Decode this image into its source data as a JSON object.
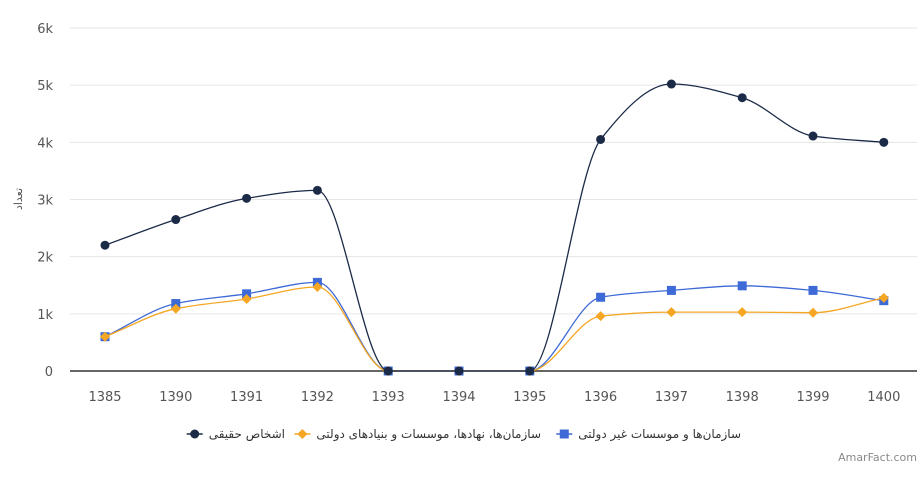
{
  "chart_data": {
    "type": "line",
    "title": "",
    "xlabel": "",
    "ylabel": "تعداد",
    "categories": [
      "1385",
      "1390",
      "1391",
      "1392",
      "1393",
      "1394",
      "1395",
      "1396",
      "1397",
      "1398",
      "1399",
      "1400"
    ],
    "ylim": [
      0,
      6000
    ],
    "yticks": [
      0,
      1000,
      2000,
      3000,
      4000,
      5000,
      6000
    ],
    "ytick_labels": [
      "0",
      "1k",
      "2k",
      "3k",
      "4k",
      "5k",
      "6k"
    ],
    "grid": true,
    "legend_position": "bottom",
    "series": [
      {
        "name": "اشخاص حقیقی",
        "color": "#1b2a47",
        "marker": "circle",
        "values": [
          2200,
          2650,
          3020,
          3160,
          0,
          0,
          0,
          4050,
          5020,
          4780,
          4110,
          4000
        ]
      },
      {
        "name": "سازمان‌ها، نهادها، موسسات و بنیادهای دولتی",
        "color": "#f5a623",
        "marker": "diamond",
        "values": [
          600,
          1090,
          1260,
          1470,
          0,
          0,
          0,
          960,
          1030,
          1030,
          1020,
          1280
        ]
      },
      {
        "name": "سازمان‌ها و موسسات غیر دولتی",
        "color": "#3d6ad6",
        "marker": "square",
        "values": [
          600,
          1180,
          1350,
          1550,
          0,
          0,
          0,
          1290,
          1410,
          1490,
          1410,
          1230
        ]
      }
    ]
  },
  "credit": "AmarFact.com"
}
